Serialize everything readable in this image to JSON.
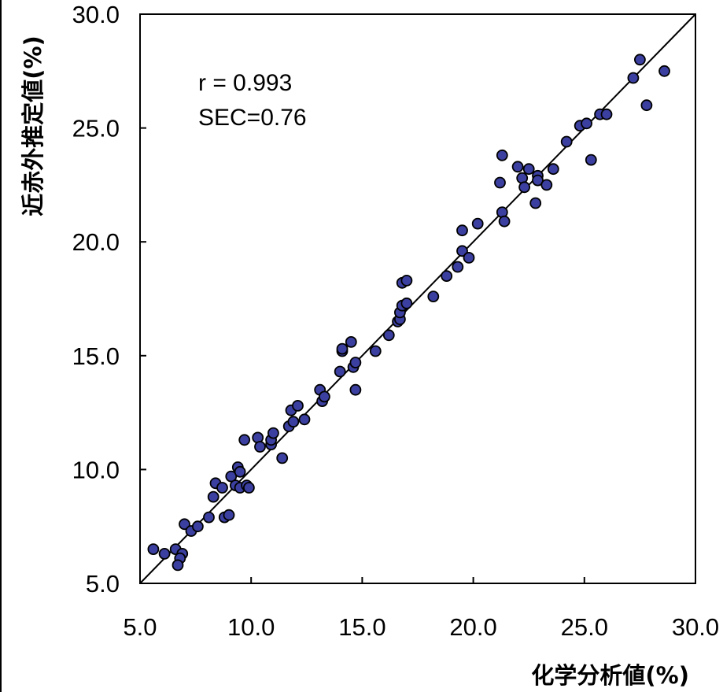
{
  "chart_data": {
    "type": "scatter",
    "xlabel": "化学分析値(%)",
    "ylabel": "近赤外推定値(%)",
    "xlim": [
      5.0,
      30.0
    ],
    "ylim": [
      5.0,
      30.0
    ],
    "x_ticks": [
      "5.0",
      "10.0",
      "15.0",
      "20.0",
      "25.0",
      "30.0"
    ],
    "y_ticks": [
      "5.0",
      "10.0",
      "15.0",
      "20.0",
      "25.0",
      "30.0"
    ],
    "grid": false,
    "reference_line": {
      "from": [
        5.0,
        5.0
      ],
      "to": [
        30.0,
        30.0
      ]
    },
    "annotations": [
      "r = 0.993",
      "SEC=0.76"
    ],
    "marker_color": "#3b3f9f",
    "series": [
      {
        "points": [
          [
            5.6,
            6.5
          ],
          [
            6.1,
            6.3
          ],
          [
            6.6,
            6.5
          ],
          [
            6.9,
            6.3
          ],
          [
            6.8,
            6.1
          ],
          [
            6.7,
            5.8
          ],
          [
            7.0,
            7.6
          ],
          [
            7.3,
            7.3
          ],
          [
            7.6,
            7.5
          ],
          [
            8.1,
            7.9
          ],
          [
            8.3,
            8.8
          ],
          [
            8.4,
            9.4
          ],
          [
            8.7,
            9.2
          ],
          [
            8.8,
            7.9
          ],
          [
            9.0,
            8.0
          ],
          [
            9.1,
            9.7
          ],
          [
            9.3,
            9.3
          ],
          [
            9.4,
            10.1
          ],
          [
            9.5,
            9.2
          ],
          [
            9.5,
            9.9
          ],
          [
            9.7,
            11.3
          ],
          [
            9.8,
            9.3
          ],
          [
            9.9,
            9.2
          ],
          [
            10.3,
            11.4
          ],
          [
            10.4,
            11.0
          ],
          [
            10.9,
            11.1
          ],
          [
            10.9,
            11.3
          ],
          [
            11.0,
            11.6
          ],
          [
            11.4,
            10.5
          ],
          [
            11.7,
            11.9
          ],
          [
            11.8,
            12.6
          ],
          [
            11.9,
            12.1
          ],
          [
            12.1,
            12.8
          ],
          [
            12.4,
            12.2
          ],
          [
            13.1,
            13.5
          ],
          [
            13.2,
            13.0
          ],
          [
            13.3,
            13.2
          ],
          [
            14.0,
            14.3
          ],
          [
            14.1,
            15.2
          ],
          [
            14.1,
            15.3
          ],
          [
            14.5,
            15.6
          ],
          [
            14.6,
            14.5
          ],
          [
            14.7,
            14.7
          ],
          [
            14.7,
            13.5
          ],
          [
            15.6,
            15.2
          ],
          [
            16.2,
            15.9
          ],
          [
            16.6,
            16.5
          ],
          [
            16.7,
            16.6
          ],
          [
            16.7,
            16.9
          ],
          [
            16.8,
            17.2
          ],
          [
            16.8,
            18.2
          ],
          [
            17.0,
            18.3
          ],
          [
            17.0,
            17.3
          ],
          [
            18.2,
            17.6
          ],
          [
            18.8,
            18.5
          ],
          [
            19.3,
            18.9
          ],
          [
            19.5,
            19.6
          ],
          [
            19.5,
            20.5
          ],
          [
            19.8,
            19.3
          ],
          [
            20.2,
            20.8
          ],
          [
            21.2,
            22.6
          ],
          [
            21.3,
            23.8
          ],
          [
            21.3,
            21.3
          ],
          [
            21.4,
            20.9
          ],
          [
            22.0,
            23.3
          ],
          [
            22.2,
            22.8
          ],
          [
            22.3,
            22.4
          ],
          [
            22.5,
            23.2
          ],
          [
            22.8,
            21.7
          ],
          [
            22.9,
            22.9
          ],
          [
            22.9,
            22.7
          ],
          [
            23.3,
            22.5
          ],
          [
            23.6,
            23.2
          ],
          [
            24.2,
            24.4
          ],
          [
            24.8,
            25.1
          ],
          [
            25.1,
            25.2
          ],
          [
            25.3,
            23.6
          ],
          [
            25.7,
            25.6
          ],
          [
            26.0,
            25.6
          ],
          [
            27.2,
            27.2
          ],
          [
            27.5,
            28.0
          ],
          [
            27.8,
            26.0
          ],
          [
            28.6,
            27.5
          ]
        ]
      }
    ]
  }
}
